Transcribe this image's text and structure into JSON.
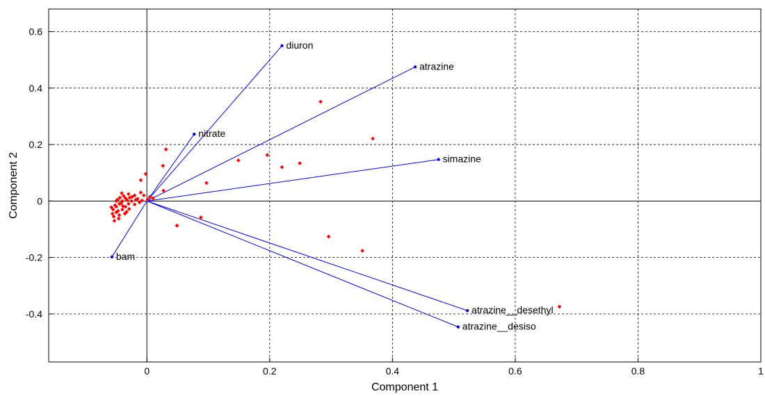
{
  "chart_data": {
    "type": "scatter",
    "xlabel": "Component 1",
    "ylabel": "Component 2",
    "xlim": [
      -0.16,
      1.0
    ],
    "ylim": [
      -0.57,
      0.68
    ],
    "grid": true,
    "x_ticks": [
      0,
      0.2,
      0.4,
      0.6,
      0.8,
      1
    ],
    "x_tick_labels": [
      "0",
      "0.2",
      "0.4",
      "0.6",
      "0.8",
      "1"
    ],
    "y_ticks": [
      -0.4,
      -0.2,
      0,
      0.2,
      0.4,
      0.6
    ],
    "y_tick_labels": [
      "-0.4",
      "-0.2",
      "0",
      "0.2",
      "0.4",
      "0.6"
    ],
    "vector_color": "#0000ff",
    "point_color": "#ff0000",
    "vectors": [
      {
        "label": "diuron",
        "x": 0.22,
        "y": 0.55
      },
      {
        "label": "atrazine",
        "x": 0.437,
        "y": 0.475
      },
      {
        "label": "nitrate",
        "x": 0.077,
        "y": 0.237
      },
      {
        "label": "simazine",
        "x": 0.475,
        "y": 0.147
      },
      {
        "label": "bam",
        "x": -0.057,
        "y": -0.198
      },
      {
        "label": "atrazine__desethyl",
        "x": 0.522,
        "y": -0.388
      },
      {
        "label": "atrazine__desiso",
        "x": 0.507,
        "y": -0.446
      }
    ],
    "points": [
      [
        0.283,
        0.352
      ],
      [
        0.368,
        0.221
      ],
      [
        0.196,
        0.163
      ],
      [
        0.149,
        0.144
      ],
      [
        0.249,
        0.134
      ],
      [
        0.22,
        0.12
      ],
      [
        0.097,
        0.064
      ],
      [
        0.031,
        0.183
      ],
      [
        0.026,
        0.125
      ],
      [
        -0.002,
        0.096
      ],
      [
        -0.01,
        0.074
      ],
      [
        0.027,
        0.037
      ],
      [
        0.088,
        -0.058
      ],
      [
        0.049,
        -0.087
      ],
      [
        0.296,
        -0.126
      ],
      [
        0.351,
        -0.176
      ],
      [
        0.672,
        -0.374
      ],
      [
        -0.01,
        0.03
      ],
      [
        -0.005,
        0.02
      ],
      [
        0.005,
        0.015
      ],
      [
        0.01,
        0.01
      ],
      [
        0.001,
        0.005
      ],
      [
        -0.02,
        0.02
      ],
      [
        -0.015,
        0.008
      ],
      [
        -0.03,
        0.025
      ],
      [
        -0.035,
        0.01
      ],
      [
        -0.04,
        0.0
      ],
      [
        -0.045,
        -0.01
      ],
      [
        -0.05,
        -0.02
      ],
      [
        -0.055,
        -0.03
      ],
      [
        -0.05,
        -0.04
      ],
      [
        -0.045,
        -0.05
      ],
      [
        -0.04,
        -0.03
      ],
      [
        -0.035,
        -0.02
      ],
      [
        -0.03,
        -0.01
      ],
      [
        -0.025,
        0.0
      ],
      [
        -0.028,
        0.012
      ],
      [
        -0.038,
        0.018
      ],
      [
        -0.042,
        -0.008
      ],
      [
        -0.048,
        0.005
      ],
      [
        -0.052,
        -0.015
      ],
      [
        -0.056,
        -0.045
      ],
      [
        -0.053,
        -0.07
      ],
      [
        -0.047,
        -0.035
      ],
      [
        -0.033,
        -0.038
      ],
      [
        -0.02,
        -0.012
      ],
      [
        -0.012,
        -0.005
      ],
      [
        -0.008,
        0.002
      ],
      [
        -0.018,
        0.005
      ],
      [
        -0.024,
        0.015
      ],
      [
        -0.032,
        0.003
      ],
      [
        -0.044,
        0.012
      ],
      [
        -0.039,
        -0.018
      ],
      [
        -0.029,
        -0.028
      ],
      [
        -0.058,
        -0.022
      ],
      [
        -0.05,
        0.0
      ],
      [
        -0.054,
        -0.055
      ],
      [
        -0.046,
        -0.062
      ],
      [
        -0.041,
        0.028
      ],
      [
        -0.036,
        -0.045
      ]
    ]
  }
}
